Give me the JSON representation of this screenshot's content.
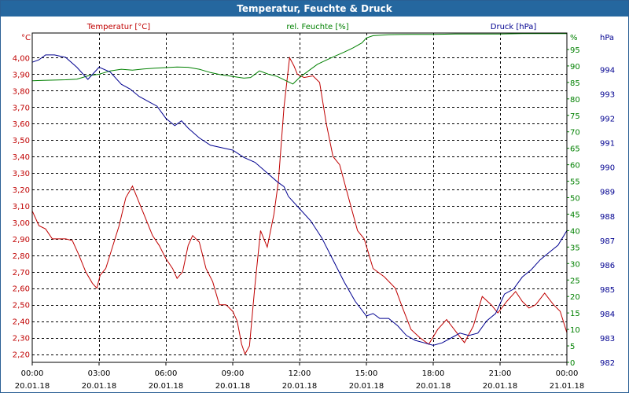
{
  "chart_data": {
    "type": "line",
    "title": "Temperatur, Feuchte & Druck",
    "x_ticks": [
      {
        "time": "00:00",
        "date": "20.01.18"
      },
      {
        "time": "03:00",
        "date": "20.01.18"
      },
      {
        "time": "06:00",
        "date": "20.01.18"
      },
      {
        "time": "09:00",
        "date": "20.01.18"
      },
      {
        "time": "12:00",
        "date": "20.01.18"
      },
      {
        "time": "15:00",
        "date": "20.01.18"
      },
      {
        "time": "18:00",
        "date": "20.01.18"
      },
      {
        "time": "21:00",
        "date": "20.01.18"
      },
      {
        "time": "00:00",
        "date": "21.01.18"
      }
    ],
    "x_range_hours": [
      0,
      24
    ],
    "axes": {
      "temp": {
        "unit": "°C",
        "min": 2.15,
        "max": 4.15,
        "color": "#c00000",
        "ticks": [
          "2,20",
          "2,30",
          "2,40",
          "2,50",
          "2,60",
          "2,70",
          "2,80",
          "2,90",
          "3,00",
          "3,10",
          "3,20",
          "3,30",
          "3,40",
          "3,50",
          "3,60",
          "3,70",
          "3,80",
          "3,90",
          "4,00"
        ]
      },
      "humidity": {
        "unit": "%",
        "min": 0,
        "max": 100,
        "color": "#008000",
        "ticks": [
          "0",
          "5",
          "10",
          "15",
          "20",
          "25",
          "30",
          "35",
          "40",
          "45",
          "50",
          "55",
          "60",
          "65",
          "70",
          "75",
          "80",
          "85",
          "90",
          "95"
        ]
      },
      "pressure": {
        "unit": "hPa",
        "min": 982,
        "max": 995.5,
        "color": "#000090",
        "ticks": [
          "982",
          "983",
          "984",
          "985",
          "986",
          "987",
          "988",
          "989",
          "990",
          "991",
          "992",
          "993",
          "994"
        ]
      }
    },
    "series": [
      {
        "name": "Temperatur [°C]",
        "axis": "temp",
        "color": "#c00000",
        "points": [
          [
            0,
            3.07
          ],
          [
            0.3,
            2.98
          ],
          [
            0.6,
            2.96
          ],
          [
            0.9,
            2.9
          ],
          [
            1.2,
            2.9
          ],
          [
            1.5,
            2.9
          ],
          [
            1.8,
            2.89
          ],
          [
            2.1,
            2.8
          ],
          [
            2.4,
            2.7
          ],
          [
            2.7,
            2.63
          ],
          [
            2.9,
            2.6
          ],
          [
            3.05,
            2.68
          ],
          [
            3.3,
            2.72
          ],
          [
            3.6,
            2.85
          ],
          [
            3.9,
            2.98
          ],
          [
            4.2,
            3.15
          ],
          [
            4.5,
            3.22
          ],
          [
            4.8,
            3.12
          ],
          [
            5.1,
            3.02
          ],
          [
            5.4,
            2.92
          ],
          [
            5.7,
            2.86
          ],
          [
            6.0,
            2.78
          ],
          [
            6.3,
            2.72
          ],
          [
            6.5,
            2.66
          ],
          [
            6.75,
            2.7
          ],
          [
            7.0,
            2.86
          ],
          [
            7.2,
            2.92
          ],
          [
            7.5,
            2.88
          ],
          [
            7.8,
            2.72
          ],
          [
            8.1,
            2.64
          ],
          [
            8.4,
            2.5
          ],
          [
            8.7,
            2.5
          ],
          [
            9.0,
            2.46
          ],
          [
            9.2,
            2.4
          ],
          [
            9.4,
            2.26
          ],
          [
            9.55,
            2.2
          ],
          [
            9.75,
            2.25
          ],
          [
            10.0,
            2.62
          ],
          [
            10.25,
            2.95
          ],
          [
            10.55,
            2.85
          ],
          [
            10.85,
            3.05
          ],
          [
            11.05,
            3.25
          ],
          [
            11.3,
            3.7
          ],
          [
            11.55,
            4.0
          ],
          [
            11.75,
            3.95
          ],
          [
            11.9,
            3.9
          ],
          [
            12.2,
            3.88
          ],
          [
            12.6,
            3.89
          ],
          [
            12.9,
            3.85
          ],
          [
            13.2,
            3.6
          ],
          [
            13.5,
            3.4
          ],
          [
            13.8,
            3.35
          ],
          [
            14.2,
            3.15
          ],
          [
            14.6,
            2.95
          ],
          [
            14.9,
            2.9
          ],
          [
            15.3,
            2.72
          ],
          [
            15.8,
            2.67
          ],
          [
            16.3,
            2.6
          ],
          [
            16.6,
            2.49
          ],
          [
            17.0,
            2.35
          ],
          [
            17.4,
            2.3
          ],
          [
            17.8,
            2.26
          ],
          [
            18.2,
            2.35
          ],
          [
            18.6,
            2.41
          ],
          [
            19.0,
            2.34
          ],
          [
            19.4,
            2.27
          ],
          [
            19.8,
            2.37
          ],
          [
            20.2,
            2.55
          ],
          [
            20.6,
            2.5
          ],
          [
            20.9,
            2.45
          ],
          [
            21.3,
            2.52
          ],
          [
            21.7,
            2.58
          ],
          [
            22.0,
            2.52
          ],
          [
            22.3,
            2.48
          ],
          [
            22.6,
            2.5
          ],
          [
            23.0,
            2.57
          ],
          [
            23.4,
            2.5
          ],
          [
            23.7,
            2.46
          ],
          [
            24.0,
            2.33
          ]
        ]
      },
      {
        "name": "rel. Feuchte [%]",
        "axis": "humidity",
        "color": "#008000",
        "points": [
          [
            0,
            85.5
          ],
          [
            0.5,
            85.6
          ],
          [
            1,
            85.7
          ],
          [
            1.5,
            85.8
          ],
          [
            2.0,
            86.0
          ],
          [
            2.5,
            87.0
          ],
          [
            3.0,
            87.5
          ],
          [
            3.5,
            88.5
          ],
          [
            4,
            89
          ],
          [
            4.5,
            88.7
          ],
          [
            5,
            89.1
          ],
          [
            5.5,
            89.3
          ],
          [
            6,
            89.5
          ],
          [
            6.5,
            89.7
          ],
          [
            7,
            89.6
          ],
          [
            7.5,
            89
          ],
          [
            8,
            88
          ],
          [
            8.5,
            87.3
          ],
          [
            9,
            86.8
          ],
          [
            9.5,
            86.3
          ],
          [
            9.8,
            86.5
          ],
          [
            10.2,
            88.5
          ],
          [
            10.6,
            87.5
          ],
          [
            11.0,
            86.8
          ],
          [
            11.4,
            85.5
          ],
          [
            11.7,
            84.5
          ],
          [
            12.0,
            86.5
          ],
          [
            12.4,
            88.5
          ],
          [
            12.8,
            90.5
          ],
          [
            13.2,
            91.8
          ],
          [
            13.6,
            93.0
          ],
          [
            14.0,
            94.2
          ],
          [
            14.4,
            95.5
          ],
          [
            14.8,
            97.0
          ],
          [
            15.0,
            98.5
          ],
          [
            15.3,
            99.2
          ],
          [
            16,
            99.5
          ],
          [
            17,
            99.6
          ],
          [
            18,
            99.6
          ],
          [
            19,
            99.7
          ],
          [
            20,
            99.7
          ],
          [
            21,
            99.7
          ],
          [
            22,
            99.8
          ],
          [
            23,
            99.8
          ],
          [
            24,
            99.8
          ]
        ]
      },
      {
        "name": "Druck [hPa]",
        "axis": "pressure",
        "color": "#000090",
        "points": [
          [
            0,
            994.3
          ],
          [
            0.3,
            994.4
          ],
          [
            0.6,
            994.6
          ],
          [
            1,
            994.6
          ],
          [
            1.5,
            994.5
          ],
          [
            2.0,
            994.1
          ],
          [
            2.5,
            993.6
          ],
          [
            3.0,
            994.1
          ],
          [
            3.5,
            993.9
          ],
          [
            4.0,
            993.4
          ],
          [
            4.4,
            993.2
          ],
          [
            4.8,
            992.9
          ],
          [
            5.2,
            992.7
          ],
          [
            5.6,
            992.5
          ],
          [
            6.0,
            992.0
          ],
          [
            6.4,
            991.7
          ],
          [
            6.7,
            991.9
          ],
          [
            7.0,
            991.6
          ],
          [
            7.5,
            991.2
          ],
          [
            8.0,
            990.9
          ],
          [
            8.5,
            990.8
          ],
          [
            9.0,
            990.7
          ],
          [
            9.5,
            990.4
          ],
          [
            10,
            990.2
          ],
          [
            10.5,
            989.8
          ],
          [
            11,
            989.4
          ],
          [
            11.3,
            989.2
          ],
          [
            11.5,
            988.8
          ],
          [
            12,
            988.3
          ],
          [
            12.5,
            987.8
          ],
          [
            13,
            987.1
          ],
          [
            13.5,
            986.2
          ],
          [
            14,
            985.3
          ],
          [
            14.5,
            984.5
          ],
          [
            15.0,
            983.9
          ],
          [
            15.3,
            984.0
          ],
          [
            15.6,
            983.8
          ],
          [
            16.0,
            983.8
          ],
          [
            16.4,
            983.5
          ],
          [
            16.8,
            983.1
          ],
          [
            17.2,
            982.9
          ],
          [
            17.6,
            982.8
          ],
          [
            18.0,
            982.7
          ],
          [
            18.4,
            982.8
          ],
          [
            18.8,
            983.0
          ],
          [
            19.2,
            983.2
          ],
          [
            19.6,
            983.1
          ],
          [
            20,
            983.2
          ],
          [
            20.4,
            983.7
          ],
          [
            20.8,
            984.0
          ],
          [
            21.2,
            984.8
          ],
          [
            21.6,
            985.0
          ],
          [
            22.0,
            985.5
          ],
          [
            22.4,
            985.8
          ],
          [
            22.8,
            986.2
          ],
          [
            23.2,
            986.5
          ],
          [
            23.6,
            986.8
          ],
          [
            24.0,
            987.4
          ]
        ]
      }
    ]
  }
}
